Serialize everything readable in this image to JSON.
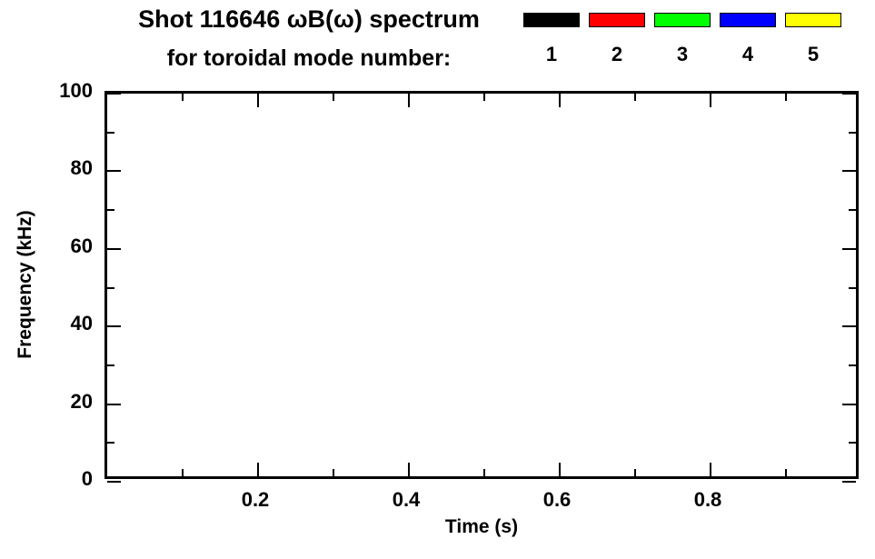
{
  "header": {
    "title_line1": "Shot 116646 ωB(ω) spectrum",
    "title_line2": "for toroidal mode number:"
  },
  "legend": {
    "entries": [
      {
        "label": "1",
        "color": "#000000"
      },
      {
        "label": "2",
        "color": "#ff0000"
      },
      {
        "label": "3",
        "color": "#00ff00"
      },
      {
        "label": "4",
        "color": "#0000ff"
      },
      {
        "label": "5",
        "color": "#ffff00"
      }
    ]
  },
  "chart_data": {
    "type": "scatter",
    "title": "Shot 116646 ωB(ω) spectrum for toroidal mode number: 1 2 3 4 5",
    "xlabel": "Time (s)",
    "ylabel": "Frequency (kHz)",
    "xlim": [
      0.0,
      1.0
    ],
    "ylim": [
      0,
      100
    ],
    "x_ticks": [
      0.2,
      0.4,
      0.6,
      0.8
    ],
    "x_tick_labels": [
      "0.2",
      "0.4",
      "0.6",
      "0.8"
    ],
    "x_minor_ticks": [
      0.1,
      0.3,
      0.5,
      0.7,
      0.9
    ],
    "y_ticks": [
      0,
      20,
      40,
      60,
      80,
      100
    ],
    "y_tick_labels": [
      "0",
      "20",
      "40",
      "60",
      "80",
      "100"
    ],
    "y_minor_ticks": [
      10,
      30,
      50,
      70,
      90
    ],
    "grid": false,
    "legend_position": "top-right",
    "series": []
  }
}
